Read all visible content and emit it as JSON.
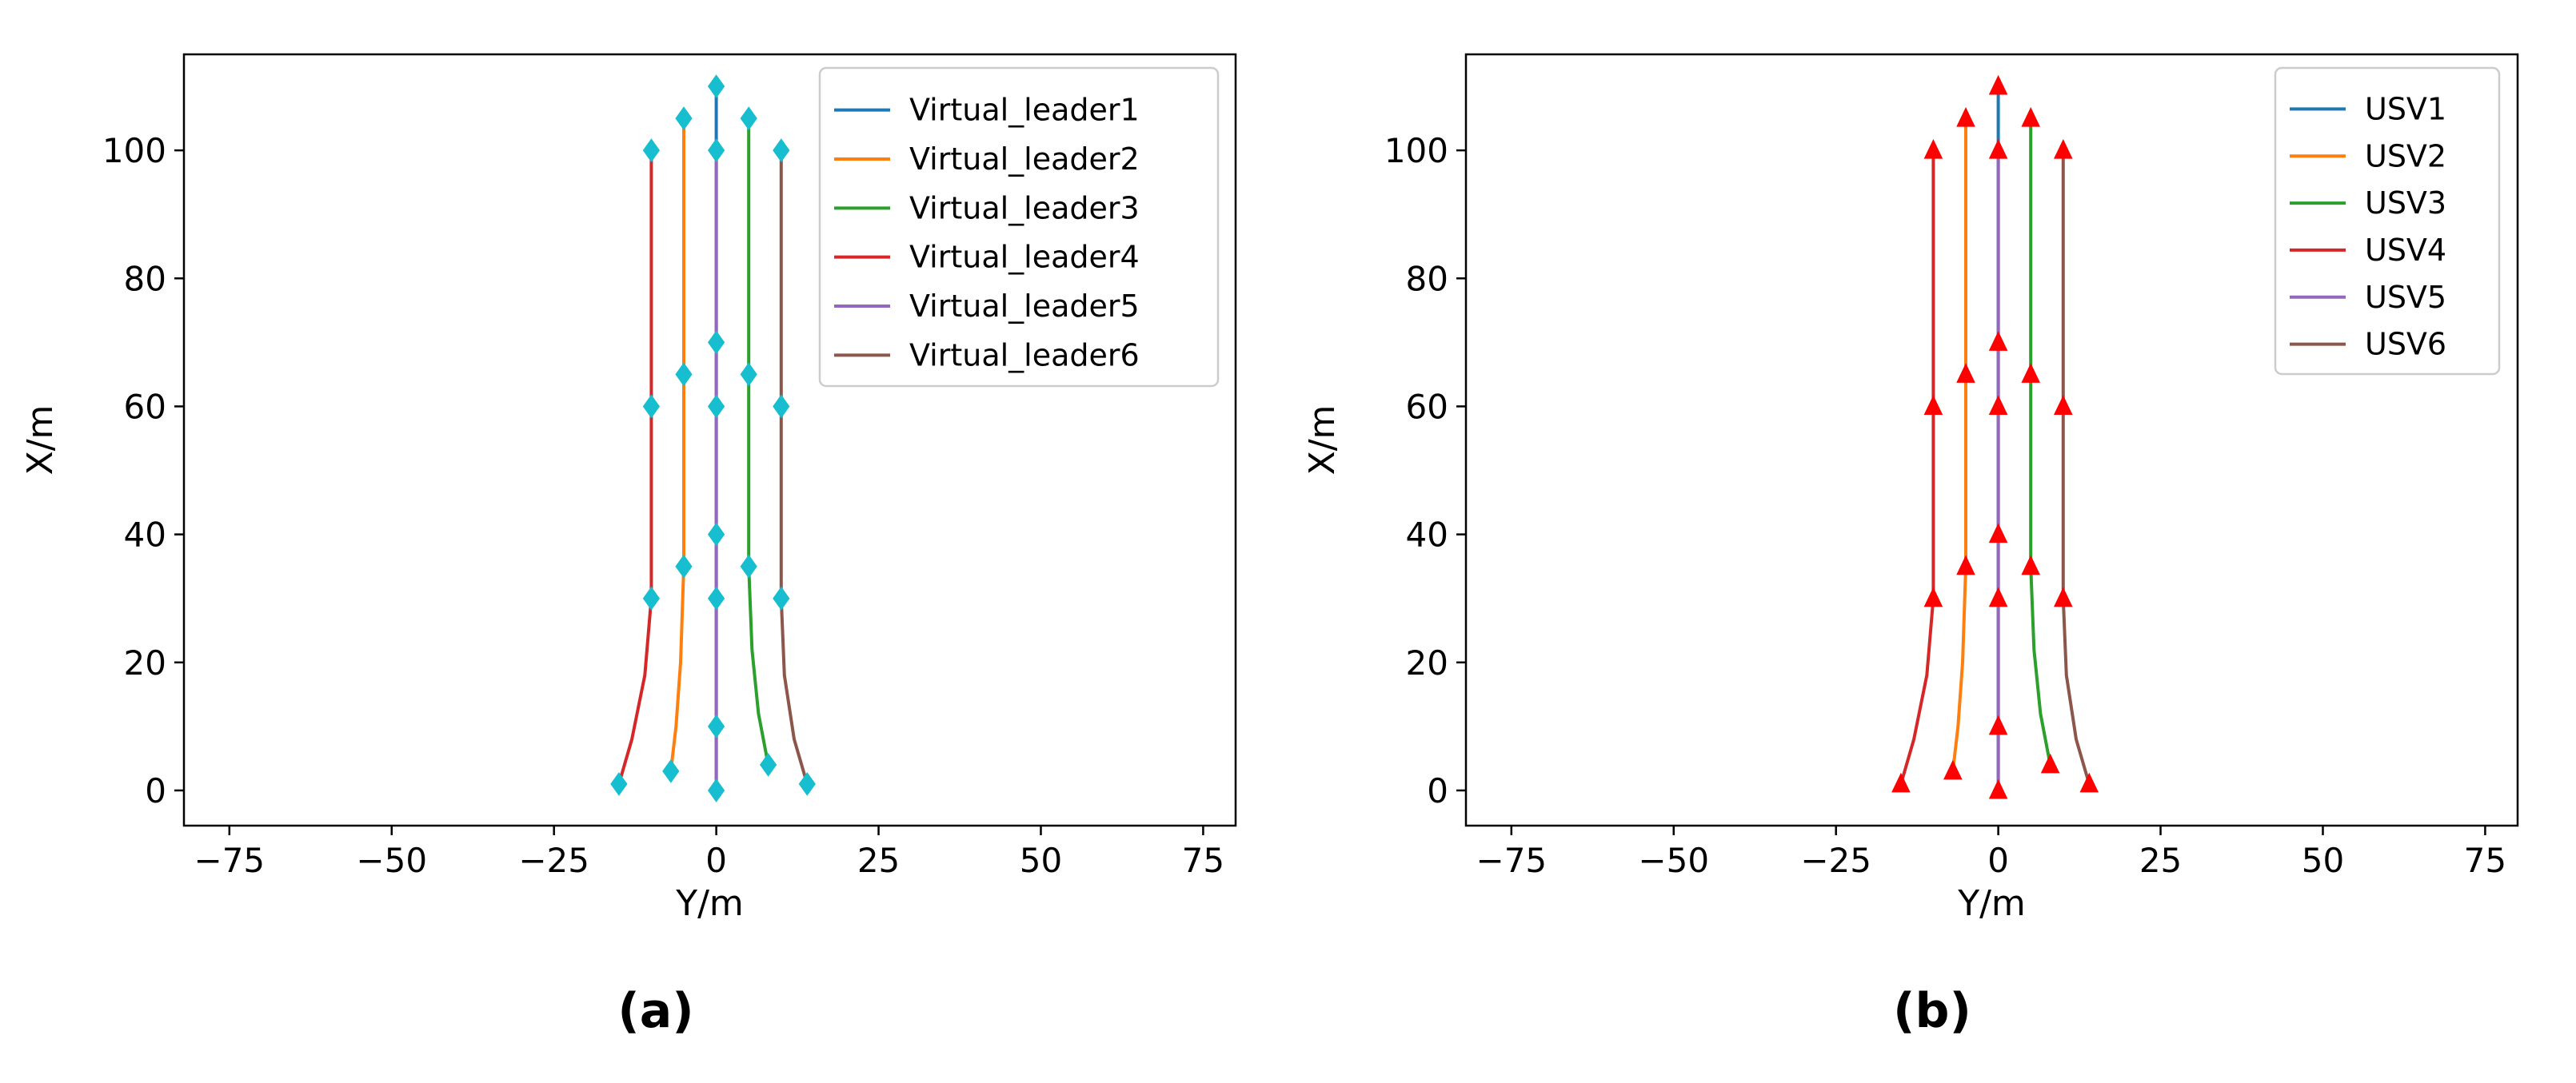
{
  "colors": {
    "series": [
      "#1f77b4",
      "#ff7f0e",
      "#2ca02c",
      "#d62728",
      "#9467bd",
      "#8c564b"
    ],
    "marker_a": "#17becf",
    "marker_b": "#ff0000",
    "axis": "#000000",
    "background": "#ffffff"
  },
  "chart_data": [
    {
      "type": "line",
      "caption": "(a)",
      "xlabel": "Y/m",
      "ylabel": "X/m",
      "xlim": [
        -82,
        80
      ],
      "ylim": [
        -5.5,
        115
      ],
      "xticks": [
        -75,
        -50,
        -25,
        0,
        25,
        50,
        75
      ],
      "yticks": [
        0,
        20,
        40,
        60,
        80,
        100
      ],
      "grid": false,
      "legend": "top-right",
      "marker": "diamond",
      "series": [
        {
          "name": "Virtual_leader1",
          "x": [
            0,
            0,
            0,
            0,
            0
          ],
          "y": [
            0,
            10,
            40,
            70,
            110
          ],
          "markers": [
            [
              0,
              110
            ]
          ]
        },
        {
          "name": "Virtual_leader2",
          "x": [
            -7,
            -6.2,
            -5.5,
            -5,
            -5,
            -5,
            -5,
            -5
          ],
          "y": [
            3,
            10,
            20,
            35,
            50,
            65,
            85,
            105
          ],
          "markers": [
            [
              -7,
              3
            ],
            [
              -5,
              35
            ],
            [
              -5,
              65
            ],
            [
              -5,
              105
            ]
          ]
        },
        {
          "name": "Virtual_leader3",
          "x": [
            8,
            6.5,
            5.5,
            5,
            5,
            5,
            5,
            5
          ],
          "y": [
            4,
            12,
            22,
            35,
            50,
            65,
            85,
            105
          ],
          "markers": [
            [
              8,
              4
            ],
            [
              5,
              35
            ],
            [
              5,
              65
            ],
            [
              5,
              105
            ]
          ]
        },
        {
          "name": "Virtual_leader4",
          "x": [
            -15,
            -13,
            -11,
            -10,
            -10,
            -10,
            -10,
            -10
          ],
          "y": [
            1,
            8,
            18,
            30,
            45,
            60,
            80,
            100
          ],
          "markers": [
            [
              -15,
              1
            ],
            [
              -10,
              30
            ],
            [
              -10,
              60
            ],
            [
              -10,
              100
            ]
          ]
        },
        {
          "name": "Virtual_leader5",
          "x": [
            0,
            0,
            0,
            0,
            0,
            0,
            0,
            0
          ],
          "y": [
            0,
            10,
            30,
            40,
            60,
            70,
            100,
            100
          ],
          "markers": [
            [
              0,
              0
            ],
            [
              0,
              10
            ],
            [
              0,
              30
            ],
            [
              0,
              40
            ],
            [
              0,
              60
            ],
            [
              0,
              70
            ],
            [
              0,
              100
            ]
          ]
        },
        {
          "name": "Virtual_leader6",
          "x": [
            14,
            12,
            10.5,
            10,
            10,
            10,
            10,
            10
          ],
          "y": [
            1,
            8,
            18,
            30,
            45,
            60,
            80,
            100
          ],
          "markers": [
            [
              14,
              1
            ],
            [
              10,
              30
            ],
            [
              10,
              60
            ],
            [
              10,
              100
            ]
          ]
        }
      ]
    },
    {
      "type": "line",
      "caption": "(b)",
      "xlabel": "Y/m",
      "ylabel": "X/m",
      "xlim": [
        -82,
        80
      ],
      "ylim": [
        -5.5,
        115
      ],
      "xticks": [
        -75,
        -50,
        -25,
        0,
        25,
        50,
        75
      ],
      "yticks": [
        0,
        20,
        40,
        60,
        80,
        100
      ],
      "grid": false,
      "legend": "top-right",
      "marker": "triangle",
      "series": [
        {
          "name": "USV1",
          "x": [
            0,
            0,
            0,
            0,
            0
          ],
          "y": [
            0,
            10,
            40,
            70,
            110
          ],
          "markers": [
            [
              0,
              110
            ]
          ]
        },
        {
          "name": "USV2",
          "x": [
            -7,
            -6.2,
            -5.5,
            -5,
            -5,
            -5,
            -5,
            -5
          ],
          "y": [
            3,
            10,
            20,
            35,
            50,
            65,
            85,
            105
          ],
          "markers": [
            [
              -7,
              3
            ],
            [
              -5,
              35
            ],
            [
              -5,
              65
            ],
            [
              -5,
              105
            ]
          ]
        },
        {
          "name": "USV3",
          "x": [
            8,
            6.5,
            5.5,
            5,
            5,
            5,
            5,
            5
          ],
          "y": [
            4,
            12,
            22,
            35,
            50,
            65,
            85,
            105
          ],
          "markers": [
            [
              8,
              4
            ],
            [
              5,
              35
            ],
            [
              5,
              65
            ],
            [
              5,
              105
            ]
          ]
        },
        {
          "name": "USV4",
          "x": [
            -15,
            -13,
            -11,
            -10,
            -10,
            -10,
            -10,
            -10
          ],
          "y": [
            1,
            8,
            18,
            30,
            45,
            60,
            80,
            100
          ],
          "markers": [
            [
              -15,
              1
            ],
            [
              -10,
              30
            ],
            [
              -10,
              60
            ],
            [
              -10,
              100
            ]
          ]
        },
        {
          "name": "USV5",
          "x": [
            0,
            0,
            0,
            0,
            0,
            0,
            0,
            0
          ],
          "y": [
            0,
            10,
            30,
            40,
            60,
            70,
            100,
            100
          ],
          "markers": [
            [
              0,
              0
            ],
            [
              0,
              10
            ],
            [
              0,
              30
            ],
            [
              0,
              40
            ],
            [
              0,
              60
            ],
            [
              0,
              70
            ],
            [
              0,
              100
            ]
          ]
        },
        {
          "name": "USV6",
          "x": [
            14,
            12,
            10.5,
            10,
            10,
            10,
            10,
            10
          ],
          "y": [
            1,
            8,
            18,
            30,
            45,
            60,
            80,
            100
          ],
          "markers": [
            [
              14,
              1
            ],
            [
              10,
              30
            ],
            [
              10,
              60
            ],
            [
              10,
              100
            ]
          ]
        }
      ]
    }
  ]
}
